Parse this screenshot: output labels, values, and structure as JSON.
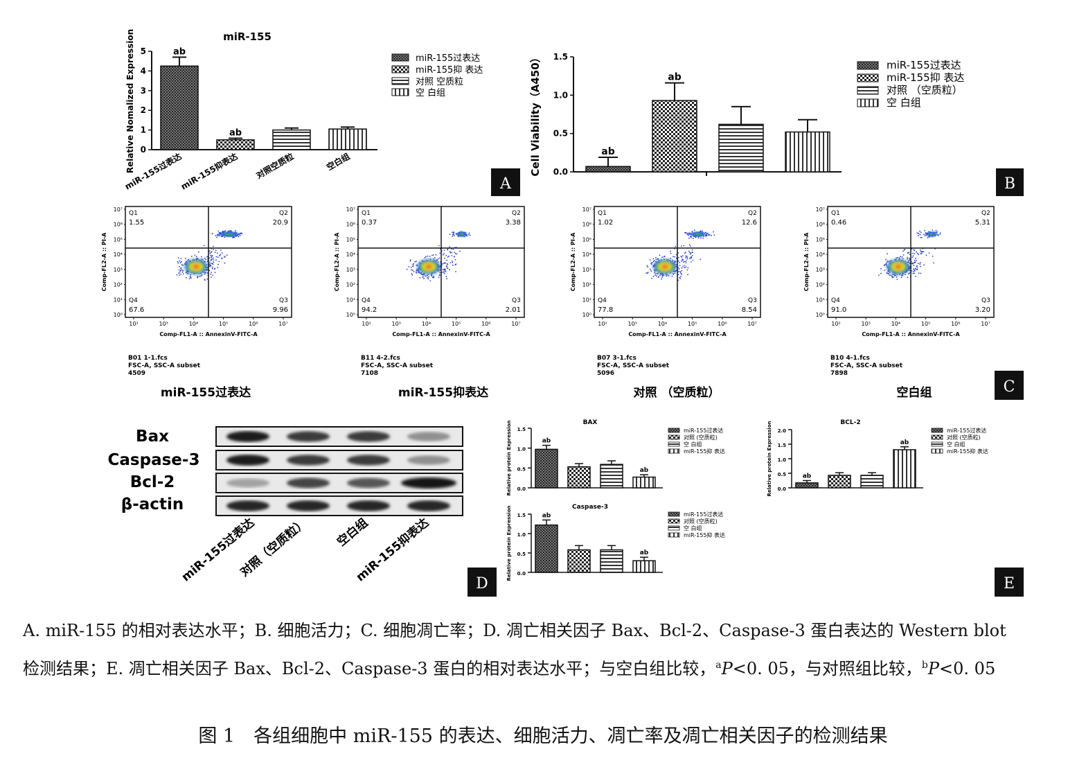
{
  "panel_a": {
    "title": "miR-155",
    "ylabel": "Relative Nomalized Expression",
    "y_ticks": [
      "0",
      "1",
      "2",
      "3",
      "4",
      "5"
    ],
    "ylim": [
      0,
      5
    ],
    "categories": [
      "miR-155过表达",
      "miR-155抑表达",
      "对照空质粒",
      "空白组"
    ],
    "legend": [
      "miR-155过表达",
      "miR-155抑 表达",
      "对照 空质粒",
      "空 白组"
    ],
    "marks": [
      "ab",
      "ab"
    ],
    "letter": "A"
  },
  "panel_b": {
    "ylabel": "Cell Viability（A450）",
    "y_ticks": [
      "0.0",
      "0.5",
      "1.0",
      "1.5"
    ],
    "legend": [
      "miR-155过表达",
      "miR-155抑 表达",
      "对照 （空质粒）",
      "空 白组"
    ],
    "marks": [
      "ab",
      "ab"
    ],
    "letter": "B"
  },
  "panel_c": {
    "letter": "C",
    "x_axis_label": "Comp-FL1-A :: AnnexinV-FITC-A",
    "y_axis_label": "Comp-FL2-A :: PI-A",
    "x_ticks": [
      "10²",
      "10³",
      "10⁴",
      "10⁵",
      "10⁶",
      "10⁷"
    ],
    "y_ticks": [
      "10⁷",
      "10⁶",
      "10⁵",
      "10⁴",
      "10³",
      "10²",
      "10¹",
      "10⁰"
    ],
    "quadrant_names": [
      "Q1",
      "Q2",
      "Q3",
      "Q4"
    ],
    "plots": [
      {
        "group": "miR-155过表达",
        "q1": "1.55",
        "q2": "20.9",
        "q3": "9.96",
        "q4": "67.6",
        "file": "B01 1-1.fcs",
        "subset": "FSC-A, SSC-A subset",
        "count": "4509"
      },
      {
        "group": "miR-155抑表达",
        "q1": "0.37",
        "q2": "3.38",
        "q3": "2.01",
        "q4": "94.2",
        "file": "B11 4-2.fcs",
        "subset": "FSC-A, SSC-A subset",
        "count": "7108"
      },
      {
        "group": "对照 （空质粒）",
        "q1": "1.02",
        "q2": "12.6",
        "q3": "8.54",
        "q4": "77.8",
        "file": "B07 3-1.fcs",
        "subset": "FSC-A, SSC-A subset",
        "count": "5096"
      },
      {
        "group": "空白组",
        "q1": "0.46",
        "q2": "5.31",
        "q3": "3.20",
        "q4": "91.0",
        "file": "B10 4-1.fcs",
        "subset": "FSC-A, SSC-A subset",
        "count": "7898"
      }
    ]
  },
  "panel_d": {
    "letter": "D",
    "proteins": [
      "Bax",
      "Caspase-3",
      "Bcl-2",
      "β-actin"
    ],
    "lanes": [
      "miR-155过表达",
      "对照（空质粒）",
      "空白组",
      "miR-155抑表达"
    ]
  },
  "panel_e": {
    "letter": "E",
    "ylabel": "Relative protein Expression",
    "legend": [
      "miR-155过表达",
      "对照 (空质粒)",
      "空 白组",
      "miR-155抑 表达"
    ],
    "bax_title": "BAX",
    "bcl2_title": "BCL-2",
    "casp_title": "Caspase-3",
    "y_ticks_15": [
      "0.0",
      "0.5",
      "1.0",
      "1.5"
    ],
    "y_ticks_20": [
      "0.0",
      "0.5",
      "1.0",
      "1.5",
      "2.0"
    ],
    "mark": "ab"
  },
  "chart_data": [
    {
      "type": "bar",
      "title": "miR-155",
      "categories": [
        "miR-155过表达",
        "miR-155抑表达",
        "对照空质粒",
        "空白组"
      ],
      "values": [
        4.25,
        0.5,
        1.0,
        1.05
      ],
      "errors": [
        0.45,
        0.08,
        0.1,
        0.1
      ],
      "ylabel": "Relative Nomalized Expression",
      "ylim": [
        0,
        5
      ]
    },
    {
      "type": "bar",
      "title": "",
      "categories": [
        "miR-155过表达",
        "miR-155抑 表达",
        "对照 （空质粒）",
        "空 白组"
      ],
      "values": [
        0.07,
        0.93,
        0.62,
        0.52
      ],
      "errors": [
        0.12,
        0.23,
        0.23,
        0.16
      ],
      "ylabel": "Cell Viability（A450）",
      "ylim": [
        0,
        1.5
      ]
    },
    {
      "type": "bar",
      "title": "BAX",
      "categories": [
        "miR-155过表达",
        "对照 (空质粒)",
        "空 白组",
        "miR-155抑 表达"
      ],
      "values": [
        0.97,
        0.53,
        0.59,
        0.27
      ],
      "errors": [
        0.1,
        0.08,
        0.09,
        0.06
      ],
      "ylabel": "Relative protein Expression",
      "ylim": [
        0,
        1.5
      ]
    },
    {
      "type": "bar",
      "title": "BCL-2",
      "categories": [
        "miR-155过表达",
        "对照 (空质粒)",
        "空 白组",
        "miR-155抑 表达"
      ],
      "values": [
        0.17,
        0.43,
        0.43,
        1.31
      ],
      "errors": [
        0.08,
        0.09,
        0.09,
        0.1
      ],
      "ylabel": "Relative protein Expression",
      "ylim": [
        0,
        2.0
      ]
    },
    {
      "type": "bar",
      "title": "Caspase-3",
      "categories": [
        "miR-155过表达",
        "对照 (空质粒)",
        "空 白组",
        "miR-155抑 表达"
      ],
      "values": [
        1.22,
        0.58,
        0.58,
        0.3
      ],
      "errors": [
        0.13,
        0.11,
        0.11,
        0.09
      ],
      "ylabel": "Relative protein Expression",
      "ylim": [
        0,
        1.5
      ]
    }
  ],
  "caption": {
    "line1": "A. miR-155 的相对表达水平；B. 细胞活力；C. 细胞凋亡率；D. 凋亡相关因子 Bax、Bcl-2、Caspase-3 蛋白表达的 Western blot",
    "line2_pre": "检测结果；E. 凋亡相关因子 Bax、Bcl-2、Caspase-3 蛋白的相对表达水平；与空白组比较，",
    "sup_a": "a",
    "p": "P",
    "p_val_a": "<0. 05，与对照组比较，",
    "sup_b": "b",
    "p_val_b": "<0. 05"
  },
  "figure_title": "图 1　各组细胞中 miR-155 的表达、细胞活力、凋亡率及凋亡相关因子的检测结果"
}
